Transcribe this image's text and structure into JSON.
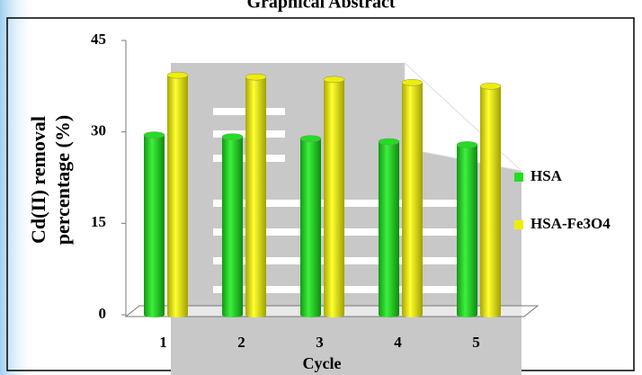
{
  "chart_data": {
    "type": "bar",
    "title": "Graphical Abstract",
    "ylabel": [
      "Cd(II) removal",
      "percentage  (%)"
    ],
    "xlabel": "Cycle",
    "categories": [
      "1",
      "2",
      "3",
      "4",
      "5"
    ],
    "series": [
      {
        "name": "HSA",
        "color": "#22dd22",
        "values": [
          29.5,
          29.2,
          28.9,
          28.4,
          27.9
        ]
      },
      {
        "name": "HSA-Fe3O4",
        "color": "#eeee00",
        "values": [
          39.3,
          39.0,
          38.6,
          38.1,
          37.5
        ]
      }
    ],
    "ylim": [
      0,
      45
    ],
    "yticks": [
      0,
      15,
      30,
      45
    ],
    "legend": "right"
  }
}
